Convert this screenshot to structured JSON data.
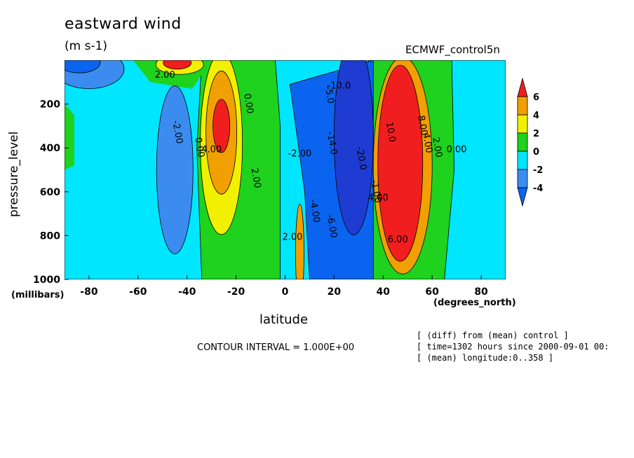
{
  "title": "eastward wind",
  "units": "(m s-1)",
  "model": "ECMWF_control5n",
  "ylabel": "pressure_level",
  "yunit": "(millibars)",
  "xlabel": "latitude",
  "xunit": "(degrees_north)",
  "contour_interval": "CONTOUR INTERVAL = 1.000E+00",
  "meta": [
    "[ (diff) from (mean) control ]",
    "[ time=1302 hours since 2000-09-01 00:",
    "[ (mean) longitude:0..358 ]"
  ],
  "colors": {
    "lt_-4": "#0a64f0",
    "-4_-2": "#3c8cf0",
    "-2_0": "#00e6ff",
    "0_2": "#1ed21e",
    "2_4": "#f0f000",
    "4_6": "#f0a000",
    "gt_6": "#f01e1e",
    "deep_blue": "#1e3cd2"
  },
  "chart_data": {
    "type": "heatmap",
    "title": "eastward wind",
    "units": "(m s-1)",
    "xlabel": "latitude",
    "ylabel": "pressure_level",
    "xlim": [
      -90,
      90
    ],
    "ylim": [
      1000,
      0
    ],
    "x_ticks": [
      "-80",
      "-60",
      "-40",
      "-20",
      "0",
      "20",
      "40",
      "60",
      "80"
    ],
    "x_tick_values": [
      -80,
      -60,
      -40,
      -20,
      0,
      20,
      40,
      60,
      80
    ],
    "y_ticks": [
      "200",
      "400",
      "600",
      "800",
      "1000"
    ],
    "y_tick_values": [
      200,
      400,
      600,
      800,
      1000
    ],
    "colorbar_labels": [
      "6",
      "4",
      "2",
      "0",
      "-2",
      "-4"
    ],
    "colorbar_levels": [
      6,
      4,
      2,
      0,
      -2,
      -4
    ],
    "contour_interval": 1.0,
    "contour_labels": [
      {
        "text": "2.00",
        "lat": -49,
        "p": 80
      },
      {
        "text": "-2.00",
        "lat": -45,
        "p": 330
      },
      {
        "text": "0.00",
        "lat": -36,
        "p": 400
      },
      {
        "text": "4.00",
        "lat": -30,
        "p": 420
      },
      {
        "text": "0.00",
        "lat": -16,
        "p": 200
      },
      {
        "text": "2.00",
        "lat": -13,
        "p": 540
      },
      {
        "text": "-2.00",
        "lat": 6,
        "p": 440
      },
      {
        "text": "-4.00",
        "lat": 11,
        "p": 690
      },
      {
        "text": "-6.00",
        "lat": 18,
        "p": 760
      },
      {
        "text": "-10.0",
        "lat": 22,
        "p": 130
      },
      {
        "text": "-14.0",
        "lat": 18,
        "p": 380
      },
      {
        "text": "-20.0",
        "lat": 30,
        "p": 450
      },
      {
        "text": "2.00",
        "lat": 3,
        "p": 820
      },
      {
        "text": "-5.0",
        "lat": 17,
        "p": 160
      },
      {
        "text": "-1.00",
        "lat": 36,
        "p": 600
      },
      {
        "text": "4.00",
        "lat": 38,
        "p": 640
      },
      {
        "text": "10.0",
        "lat": 42,
        "p": 330
      },
      {
        "text": "8.00",
        "lat": 55,
        "p": 300
      },
      {
        "text": "6.00",
        "lat": 46,
        "p": 830
      },
      {
        "text": "4.00",
        "lat": 57,
        "p": 380
      },
      {
        "text": "2.00",
        "lat": 61,
        "p": 400
      },
      {
        "text": "0.00",
        "lat": 70,
        "p": 420
      }
    ]
  }
}
